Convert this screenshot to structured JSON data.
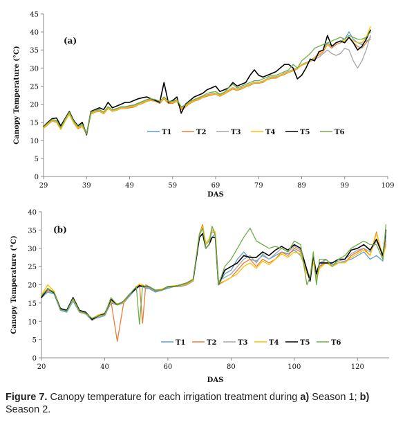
{
  "caption": {
    "label": "Figure 7.",
    "text": " Canopy temperature for each irrigation treatment during ",
    "a_label": "a)",
    "a_text": " Season 1; ",
    "b_label": "b)",
    "b_text": " Season 2."
  },
  "chart_data": [
    {
      "type": "line",
      "panel_label": "(a)",
      "xlabel": "DAS",
      "ylabel": "Canopy Temperature (°C)",
      "xlim": [
        29,
        109
      ],
      "ylim": [
        0,
        45
      ],
      "xticks": [
        29,
        39,
        49,
        59,
        69,
        79,
        89,
        99,
        109
      ],
      "yticks": [
        0,
        5,
        10,
        15,
        20,
        25,
        30,
        35,
        40,
        45
      ],
      "grid": false,
      "legend_position": "inside-lower-middle",
      "x": [
        29,
        30,
        31,
        32,
        33,
        34,
        35,
        36,
        37,
        38,
        39,
        40,
        41,
        42,
        43,
        44,
        45,
        46,
        47,
        48,
        49,
        50,
        51,
        52,
        53,
        54,
        55,
        56,
        57,
        58,
        59,
        60,
        61,
        62,
        63,
        64,
        65,
        66,
        67,
        68,
        69,
        70,
        71,
        72,
        73,
        74,
        75,
        76,
        77,
        78,
        79,
        80,
        81,
        82,
        83,
        84,
        85,
        86,
        87,
        88,
        89,
        90,
        91,
        92,
        93,
        94,
        95,
        96,
        97,
        98,
        99,
        100,
        101,
        102,
        103,
        104,
        105
      ],
      "series": [
        {
          "name": "T1",
          "color": "#5b9bd5",
          "values": [
            13.5,
            14.5,
            15.5,
            15.2,
            13.2,
            15.5,
            17.5,
            15,
            13.5,
            14,
            12,
            17.5,
            18,
            18.2,
            17.5,
            19,
            18.2,
            18.5,
            19,
            19,
            19.3,
            19.5,
            20,
            20.5,
            21,
            21.2,
            21,
            20.5,
            21.8,
            20.5,
            20.5,
            21,
            19,
            19.5,
            20.5,
            21,
            21.5,
            22,
            22.5,
            22.8,
            23,
            22.5,
            23,
            23.8,
            24.5,
            24,
            24.5,
            25,
            25.5,
            26,
            26,
            26.3,
            27,
            27.5,
            27.5,
            28,
            28.5,
            29,
            29.5,
            30,
            31,
            31.5,
            32,
            33,
            34,
            35,
            37,
            36,
            37,
            37.5,
            38,
            40,
            38,
            37,
            36.5,
            37.5,
            38
          ]
        },
        {
          "name": "T2",
          "color": "#ed7d31",
          "values": [
            13.3,
            14.3,
            15.3,
            15,
            13,
            15.3,
            17.2,
            14.8,
            13.2,
            13.8,
            11.8,
            17.2,
            17.8,
            18,
            17.3,
            18.8,
            18,
            18.3,
            18.8,
            18.8,
            19,
            19.2,
            19.8,
            20.2,
            20.8,
            21,
            20.8,
            20.2,
            21.5,
            20.2,
            20.2,
            20.8,
            18.5,
            19.2,
            20.2,
            20.8,
            21.2,
            21.8,
            22.2,
            22.5,
            22.8,
            22.2,
            22.8,
            23.5,
            24.2,
            23.8,
            24.2,
            24.8,
            25.2,
            25.8,
            25.8,
            26,
            26.8,
            27.2,
            27.2,
            27.8,
            28.2,
            28.8,
            29.2,
            29.8,
            30.8,
            31.2,
            31.8,
            32.8,
            33.5,
            34.5,
            36.5,
            35.5,
            36.5,
            37,
            37.5,
            38.5,
            37,
            36,
            35.5,
            37,
            38.5
          ]
        },
        {
          "name": "T3",
          "color": "#a5a5a5",
          "values": [
            13.6,
            14.6,
            15.6,
            15.3,
            13.3,
            15.6,
            17.4,
            15.1,
            13.6,
            14.1,
            11.9,
            17.6,
            18.1,
            18.3,
            17.6,
            19.1,
            18.3,
            18.6,
            19.1,
            19.1,
            19.4,
            19.6,
            20.1,
            20.6,
            21.1,
            21.3,
            21.1,
            20.6,
            21.9,
            20.6,
            20.6,
            21.1,
            19.2,
            19.6,
            20.6,
            21.1,
            21.6,
            22.1,
            22.6,
            22.9,
            23.1,
            22.6,
            23.1,
            23.9,
            24.6,
            24.1,
            24.6,
            25.1,
            25.6,
            26.1,
            26.1,
            26.4,
            27.1,
            27.6,
            27.6,
            28.1,
            28.6,
            29.1,
            29.6,
            30.1,
            31,
            31.3,
            31.8,
            32.5,
            33,
            34,
            35,
            34,
            33.5,
            34,
            35.5,
            35,
            32,
            30,
            32,
            35,
            39
          ]
        },
        {
          "name": "T4",
          "color": "#ffc000",
          "values": [
            13.4,
            14.4,
            15.4,
            15.1,
            13.1,
            15.4,
            17.3,
            14.9,
            13.4,
            13.9,
            11.9,
            17.3,
            17.9,
            18.1,
            17.4,
            18.9,
            18.1,
            18.4,
            18.9,
            18.9,
            19.2,
            19.4,
            19.9,
            20.4,
            20.9,
            21.1,
            20.9,
            20.4,
            21.7,
            20.4,
            20.4,
            20.9,
            18.8,
            19.4,
            20.4,
            20.9,
            21.4,
            21.9,
            22.4,
            22.7,
            22.9,
            22.4,
            22.9,
            23.7,
            24.4,
            23.9,
            24.4,
            24.9,
            25.4,
            25.9,
            25.9,
            26.2,
            26.9,
            27.4,
            27.4,
            27.9,
            28.4,
            28.9,
            29.4,
            29.9,
            30.9,
            31.4,
            31.9,
            32.9,
            34,
            35,
            36.5,
            36,
            37,
            37.5,
            37.5,
            38.5,
            37.5,
            37,
            37,
            38.5,
            41.5
          ]
        },
        {
          "name": "T5",
          "color": "#000000",
          "values": [
            13.8,
            15,
            16,
            16.2,
            14,
            16,
            18,
            15.5,
            14,
            15,
            11.5,
            18,
            18.5,
            19,
            18.5,
            20.5,
            19,
            19.5,
            20,
            20.5,
            20.5,
            21,
            21.5,
            21.8,
            22,
            21.5,
            21,
            20.5,
            26,
            20.5,
            21,
            22,
            17.5,
            20,
            21,
            22,
            22.5,
            23,
            24,
            24.5,
            25,
            23.5,
            24,
            24.5,
            26,
            25,
            25.5,
            26,
            28,
            29.5,
            28,
            27.5,
            28,
            28.5,
            29,
            30,
            31,
            31,
            30,
            27,
            28,
            30,
            32.5,
            32,
            34.5,
            35,
            39,
            36,
            37,
            37.5,
            37,
            38.5,
            37,
            35,
            36,
            38,
            40.5
          ]
        },
        {
          "name": "T6",
          "color": "#70ad47",
          "values": [
            13.7,
            14.8,
            15.8,
            15.5,
            13.5,
            15.8,
            17.8,
            15.3,
            13.8,
            14.5,
            11.7,
            17.8,
            18.3,
            18.5,
            17.8,
            19.3,
            18.5,
            18.8,
            19.3,
            19.3,
            19.6,
            19.8,
            20.3,
            20.8,
            21.3,
            21.5,
            21.3,
            20.8,
            22,
            20.8,
            20.8,
            21.3,
            19.3,
            19.8,
            20.8,
            21.3,
            21.8,
            22.3,
            23,
            23.3,
            23.5,
            22.8,
            23.3,
            24.5,
            25.5,
            24.5,
            25,
            25.5,
            26,
            26.5,
            26.5,
            27,
            27.5,
            28,
            28,
            28.5,
            29,
            29.5,
            31,
            30,
            32,
            33,
            34,
            35.5,
            36,
            36.5,
            37,
            37.5,
            38,
            38.5,
            38,
            39,
            38.5,
            38,
            38,
            38.5,
            40
          ]
        }
      ]
    },
    {
      "type": "line",
      "panel_label": "(b)",
      "xlabel": "DAS",
      "ylabel": "Canopy Temperature (°C)",
      "xlim": [
        20,
        130
      ],
      "ylim": [
        0,
        40
      ],
      "xticks": [
        20,
        40,
        60,
        80,
        100,
        120
      ],
      "yticks": [
        0,
        5,
        10,
        15,
        20,
        25,
        30,
        35,
        40
      ],
      "grid": false,
      "legend_position": "bottom-inside",
      "x": [
        20,
        22,
        24,
        26,
        28,
        30,
        32,
        34,
        36,
        38,
        40,
        42,
        44,
        46,
        48,
        50,
        51,
        52,
        53,
        54,
        56,
        58,
        60,
        62,
        64,
        66,
        68,
        70,
        71,
        72,
        73,
        74,
        75,
        76,
        78,
        80,
        82,
        84,
        86,
        88,
        90,
        92,
        94,
        96,
        98,
        100,
        102,
        104,
        105,
        106,
        107,
        108,
        110,
        112,
        114,
        116,
        118,
        120,
        122,
        124,
        126,
        128,
        129
      ],
      "series": [
        {
          "name": "T1",
          "color": "#5b9bd5",
          "values": [
            16.5,
            18,
            17.5,
            13,
            12.5,
            15.5,
            12.5,
            12,
            10.5,
            11,
            11.5,
            15,
            14.5,
            15,
            17,
            19,
            19.5,
            19.5,
            19,
            19,
            18,
            18.5,
            19,
            19.5,
            19.5,
            20,
            21,
            33,
            34,
            31,
            32,
            33,
            34,
            20,
            23,
            24,
            27,
            29,
            27,
            26.5,
            28,
            27,
            28,
            29,
            28.5,
            29.5,
            28,
            23.5,
            22,
            27,
            23,
            25,
            27,
            25.5,
            26,
            26.5,
            27,
            28,
            29,
            27,
            28,
            26.5,
            33.5
          ]
        },
        {
          "name": "T2",
          "color": "#ed7d31",
          "values": [
            17,
            18.5,
            18,
            13.5,
            13,
            16,
            12.5,
            12,
            10.5,
            11.5,
            12,
            15.5,
            4.5,
            15,
            17.5,
            19.5,
            20,
            9.5,
            20,
            19.5,
            18.5,
            18.5,
            19.5,
            19.5,
            19.5,
            20,
            21,
            34,
            36.5,
            31,
            32,
            36,
            34,
            20,
            21,
            22,
            24,
            26,
            27,
            25,
            27,
            26,
            27,
            29,
            28,
            30,
            29,
            24,
            21,
            27,
            21,
            25,
            26,
            25,
            26,
            26,
            28,
            29,
            30,
            28,
            34.5,
            27,
            32
          ]
        },
        {
          "name": "T3",
          "color": "#a5a5a5",
          "values": [
            16.8,
            18.2,
            17.8,
            13.2,
            12.8,
            15.8,
            12.6,
            12,
            10.2,
            11.2,
            11.5,
            15.2,
            14.5,
            15,
            17.2,
            19.2,
            19.8,
            19.8,
            19.3,
            19.2,
            18.2,
            18.5,
            19.2,
            19.5,
            19.5,
            20,
            21,
            33.5,
            35.5,
            31,
            32,
            34.5,
            34,
            21,
            22,
            23,
            25,
            27,
            28,
            26,
            28.5,
            27,
            28.5,
            30,
            29,
            30.5,
            29.5,
            24,
            22,
            28,
            22,
            26,
            27,
            25.5,
            26.5,
            27,
            28.5,
            29.5,
            30,
            29,
            32,
            28,
            31
          ]
        },
        {
          "name": "T4",
          "color": "#ffc000",
          "values": [
            17.2,
            20,
            18.2,
            13.5,
            13,
            16,
            12.8,
            12.2,
            10.8,
            11.8,
            12.2,
            15.5,
            14.8,
            15.2,
            17.5,
            19.5,
            20.2,
            20,
            19.5,
            19.5,
            18.5,
            18.8,
            19.5,
            19.8,
            19.8,
            20.2,
            21.2,
            34,
            36,
            31.5,
            32.5,
            35,
            34.5,
            20.5,
            21,
            22,
            23,
            25,
            26,
            24.5,
            26.5,
            25.5,
            27,
            28.5,
            27.5,
            29,
            28.5,
            23,
            21.5,
            26.5,
            21.5,
            24.5,
            26,
            25,
            26,
            26,
            27.5,
            28.5,
            29.5,
            28,
            34,
            28,
            30.5
          ]
        },
        {
          "name": "T5",
          "color": "#000000",
          "values": [
            16.5,
            19,
            17.8,
            13.5,
            13,
            16.5,
            13,
            12.5,
            10.5,
            11.5,
            12,
            16,
            14.5,
            15.5,
            17.5,
            19,
            19.8,
            19.5,
            19.5,
            19.5,
            18.5,
            18.5,
            19.5,
            19.5,
            20,
            20.5,
            21.5,
            33,
            34,
            30,
            31,
            33,
            33,
            20,
            24,
            25,
            26,
            28,
            27.5,
            27.5,
            29,
            28,
            29.5,
            30.5,
            29.5,
            31,
            30,
            24,
            21,
            28,
            23,
            26,
            26,
            26,
            27,
            27,
            29.5,
            30,
            31,
            29.5,
            32.5,
            28,
            35
          ]
        },
        {
          "name": "T6",
          "color": "#70ad47",
          "values": [
            17,
            19,
            18,
            13.2,
            12.8,
            16.2,
            12.8,
            12.2,
            10.8,
            11.5,
            11.8,
            16.5,
            14.5,
            15.5,
            17.5,
            19.5,
            9.2,
            19.8,
            19.5,
            19.5,
            18.5,
            18.5,
            19.5,
            19.5,
            20,
            20.5,
            21.5,
            34,
            35.5,
            30,
            31,
            36,
            33.5,
            20,
            25,
            27,
            30,
            33,
            35.5,
            32,
            31,
            30,
            30.5,
            30,
            29,
            32,
            31,
            20,
            22,
            29,
            20,
            27,
            27,
            25,
            27,
            28,
            30,
            31,
            32,
            31,
            31,
            27,
            36.5
          ]
        }
      ]
    }
  ]
}
